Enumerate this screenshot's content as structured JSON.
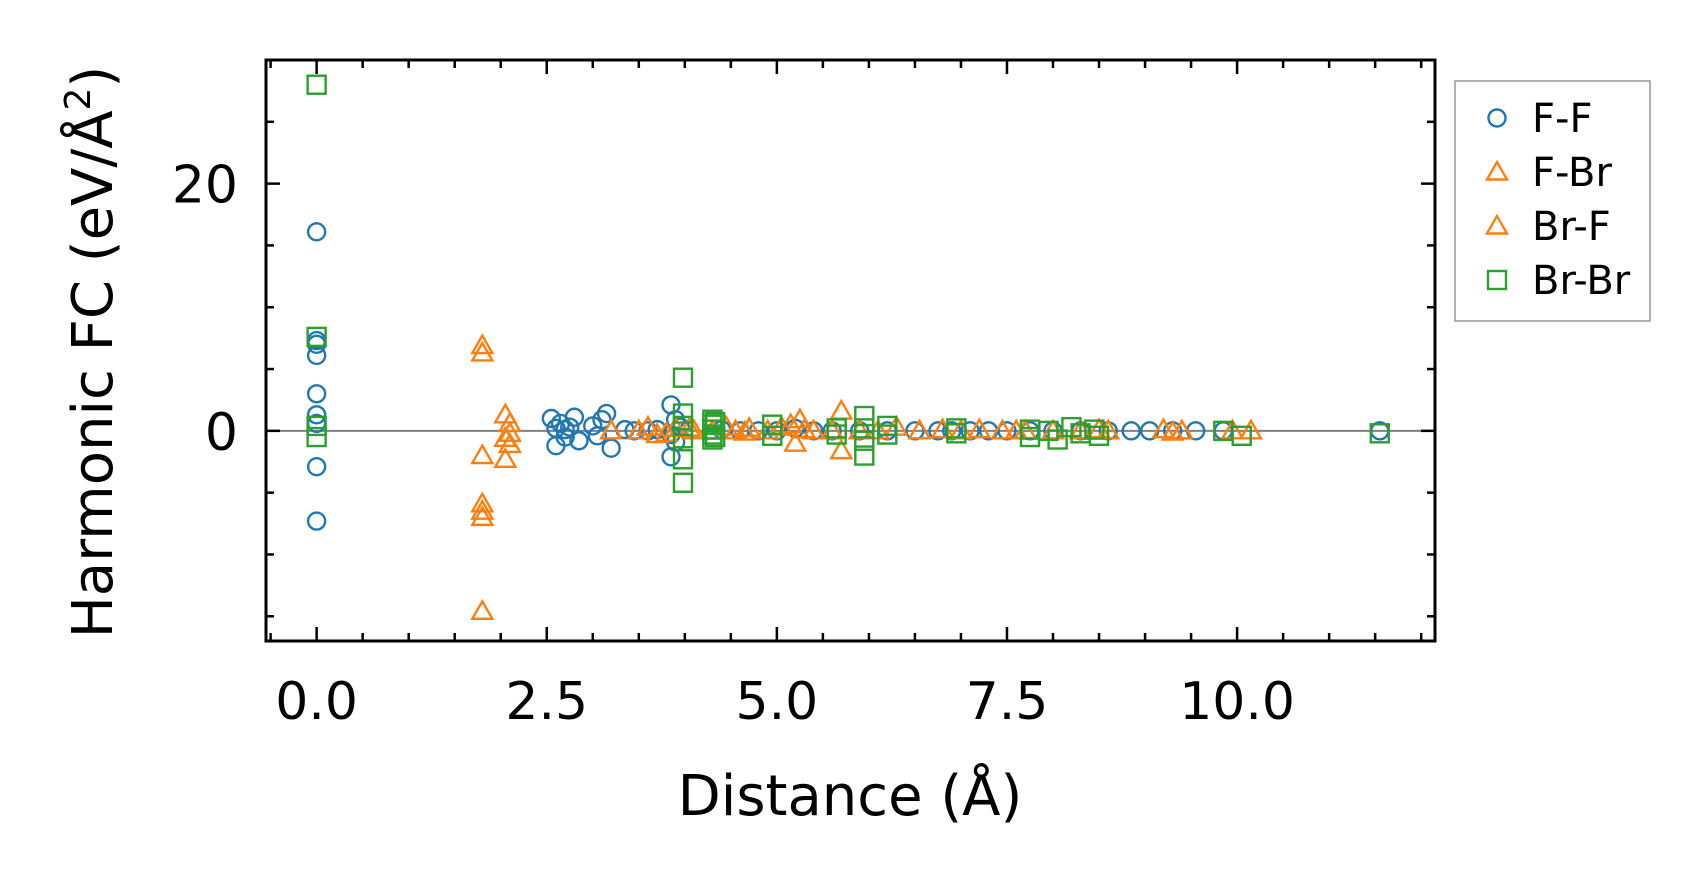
{
  "chart_data": {
    "type": "scatter",
    "title": "",
    "xlabel": "Distance (Å)",
    "ylabel_main": "Harmonic FC (eV/Å",
    "ylabel_sup": "2",
    "ylabel_close": ")",
    "xlim": [
      -0.55,
      12.15
    ],
    "ylim": [
      -17,
      30
    ],
    "x_major_ticks": [
      0.0,
      2.5,
      5.0,
      7.5,
      10.0
    ],
    "x_tick_labels": [
      "0.0",
      "2.5",
      "5.0",
      "7.5",
      "10.0"
    ],
    "y_major_ticks": [
      0,
      20
    ],
    "y_tick_labels": [
      "0",
      "20"
    ],
    "zero_line": true,
    "legend_position": "outside-right-top",
    "series": [
      {
        "name": "F-F",
        "marker": "circle",
        "color": "#1f77b4",
        "points": [
          [
            0,
            16.1
          ],
          [
            0,
            7.3
          ],
          [
            0,
            7.0
          ],
          [
            0,
            6.1
          ],
          [
            0,
            3.0
          ],
          [
            0,
            1.3
          ],
          [
            0,
            0.6
          ],
          [
            0,
            -2.9
          ],
          [
            0,
            -7.3
          ],
          [
            2.55,
            1.0
          ],
          [
            2.6,
            -1.2
          ],
          [
            2.65,
            0.6
          ],
          [
            2.7,
            -0.5
          ],
          [
            2.75,
            0.3
          ],
          [
            2.8,
            1.1
          ],
          [
            2.85,
            -0.8
          ],
          [
            2.7,
            0.1
          ],
          [
            2.6,
            0.2
          ],
          [
            3.0,
            0.4
          ],
          [
            3.05,
            -0.4
          ],
          [
            3.15,
            1.4
          ],
          [
            3.2,
            -1.4
          ],
          [
            3.1,
            0.9
          ],
          [
            3.35,
            0.1
          ],
          [
            3.45,
            0.0
          ],
          [
            3.6,
            0.0
          ],
          [
            3.7,
            0.1
          ],
          [
            3.85,
            2.1
          ],
          [
            3.85,
            -2.1
          ],
          [
            3.9,
            0.9
          ],
          [
            3.9,
            -0.9
          ],
          [
            3.95,
            0.3
          ],
          [
            3.85,
            -0.3
          ],
          [
            4.4,
            0.1
          ],
          [
            4.6,
            0.0
          ],
          [
            4.8,
            0.0
          ],
          [
            5.0,
            0.0
          ],
          [
            5.2,
            0.2
          ],
          [
            5.4,
            0.0
          ],
          [
            5.6,
            0.0
          ],
          [
            5.9,
            0.0
          ],
          [
            6.2,
            0.0
          ],
          [
            6.5,
            0.0
          ],
          [
            6.75,
            0.0
          ],
          [
            6.9,
            0.0
          ],
          [
            7.1,
            0.0
          ],
          [
            7.3,
            0.0
          ],
          [
            7.5,
            0.0
          ],
          [
            7.75,
            0.0
          ],
          [
            8.0,
            0.0
          ],
          [
            8.3,
            0.0
          ],
          [
            8.6,
            0.0
          ],
          [
            8.85,
            0.0
          ],
          [
            9.05,
            0.0
          ],
          [
            9.3,
            0.0
          ],
          [
            9.55,
            0.0
          ],
          [
            9.85,
            0.0
          ],
          [
            11.55,
            0.0
          ]
        ]
      },
      {
        "name": "F-Br",
        "marker": "triangle",
        "color": "#ff7f0e",
        "points": [
          [
            1.8,
            6.9
          ],
          [
            1.8,
            6.3
          ],
          [
            1.8,
            -2.0
          ],
          [
            1.8,
            -5.9
          ],
          [
            1.8,
            -6.5
          ],
          [
            1.8,
            -7.0
          ],
          [
            1.8,
            -14.6
          ],
          [
            2.05,
            1.3
          ],
          [
            2.1,
            0.6
          ],
          [
            2.05,
            -0.6
          ],
          [
            2.1,
            -1.1
          ],
          [
            2.05,
            -2.3
          ],
          [
            2.1,
            -0.2
          ],
          [
            3.2,
            0.0
          ],
          [
            3.5,
            0.0
          ],
          [
            3.7,
            -0.3
          ],
          [
            3.9,
            0.2
          ],
          [
            4.1,
            0.0
          ],
          [
            4.3,
            0.0
          ],
          [
            4.55,
            0.0
          ],
          [
            4.7,
            0.2
          ],
          [
            4.9,
            0.0
          ],
          [
            5.15,
            0.5
          ],
          [
            5.2,
            -1.0
          ],
          [
            5.25,
            0.9
          ],
          [
            5.4,
            0.0
          ],
          [
            5.7,
            1.6
          ],
          [
            5.7,
            -1.6
          ],
          [
            5.9,
            0.0
          ],
          [
            6.3,
            0.3
          ],
          [
            6.55,
            0.0
          ],
          [
            7.0,
            0.0
          ],
          [
            7.2,
            0.1
          ],
          [
            7.45,
            0.0
          ],
          [
            7.7,
            0.0
          ],
          [
            8.0,
            0.0
          ],
          [
            8.3,
            0.0
          ],
          [
            8.6,
            0.0
          ],
          [
            9.2,
            0.1
          ],
          [
            9.4,
            0.0
          ],
          [
            10.15,
            0.0
          ]
        ]
      },
      {
        "name": "Br-F",
        "marker": "triangle",
        "color": "#ff7f0e",
        "points": [
          [
            3.6,
            0.3
          ],
          [
            3.8,
            -0.2
          ],
          [
            4.05,
            0.2
          ],
          [
            4.45,
            0.3
          ],
          [
            4.65,
            -0.1
          ],
          [
            5.05,
            0.3
          ],
          [
            5.3,
            0.1
          ],
          [
            5.6,
            0.0
          ],
          [
            6.1,
            0.0
          ],
          [
            6.8,
            0.1
          ],
          [
            7.6,
            0.0
          ],
          [
            8.5,
            0.1
          ],
          [
            9.3,
            -0.1
          ],
          [
            9.95,
            0.0
          ]
        ]
      },
      {
        "name": "Br-Br",
        "marker": "square",
        "color": "#2ca02c",
        "points": [
          [
            0,
            28.0
          ],
          [
            0,
            7.6
          ],
          [
            0,
            -0.5
          ],
          [
            0,
            0.4
          ],
          [
            3.98,
            4.3
          ],
          [
            3.98,
            1.4
          ],
          [
            3.98,
            -2.3
          ],
          [
            3.98,
            -4.2
          ],
          [
            3.98,
            0.4
          ],
          [
            3.98,
            -0.6
          ],
          [
            4.3,
            0.9
          ],
          [
            4.3,
            0.5
          ],
          [
            4.3,
            0.1
          ],
          [
            4.3,
            -0.3
          ],
          [
            4.3,
            -0.7
          ],
          [
            4.33,
            0.7
          ],
          [
            4.33,
            -0.5
          ],
          [
            4.95,
            0.5
          ],
          [
            4.95,
            -0.4
          ],
          [
            5.65,
            0.2
          ],
          [
            5.65,
            -0.3
          ],
          [
            5.95,
            1.2
          ],
          [
            5.95,
            0.2
          ],
          [
            5.95,
            -0.8
          ],
          [
            5.95,
            -2.0
          ],
          [
            6.2,
            0.4
          ],
          [
            6.2,
            -0.3
          ],
          [
            6.95,
            0.2
          ],
          [
            6.95,
            -0.2
          ],
          [
            7.75,
            0.1
          ],
          [
            7.75,
            -0.5
          ],
          [
            7.95,
            0.0
          ],
          [
            8.05,
            -0.7
          ],
          [
            8.2,
            0.3
          ],
          [
            8.3,
            -0.2
          ],
          [
            8.45,
            0.1
          ],
          [
            8.5,
            -0.4
          ],
          [
            9.85,
            0.0
          ],
          [
            10.05,
            -0.4
          ],
          [
            11.55,
            -0.2
          ]
        ]
      }
    ]
  }
}
